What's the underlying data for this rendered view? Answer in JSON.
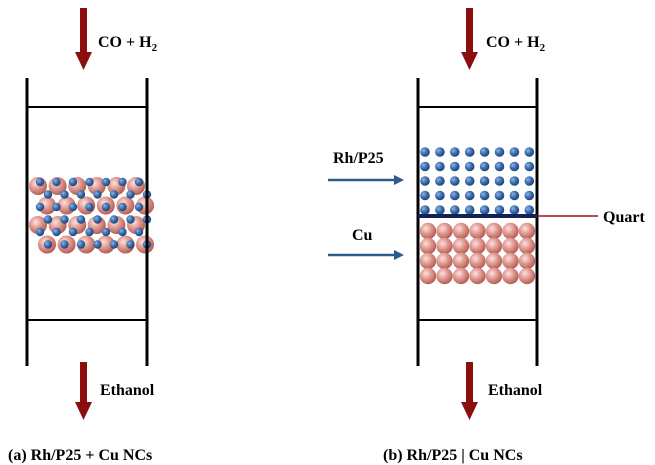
{
  "reactor_a": {
    "feed": {
      "text": "CO + H",
      "subscript": "2"
    },
    "product": "Ethanol",
    "caption": "(a) Rh/P25 + Cu NCs"
  },
  "reactor_b": {
    "feed": {
      "text": "CO + H",
      "subscript": "2"
    },
    "product": "Ethanol",
    "upper_bed": "Rh/P25",
    "lower_bed": "Cu",
    "separator": "Quart",
    "caption": "(b) Rh/P25 | Cu NCs"
  }
}
